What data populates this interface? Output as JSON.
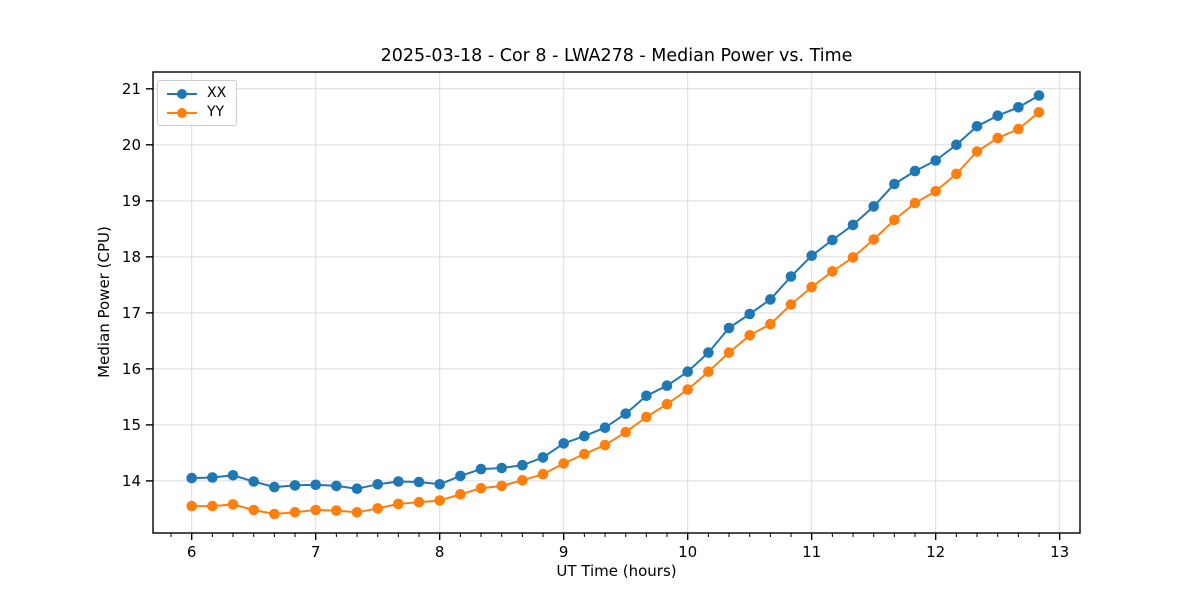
{
  "chart_data": {
    "type": "line",
    "title": "2025-03-18 - Cor 8 - LWA278 - Median Power vs. Time",
    "xlabel": "UT Time (hours)",
    "ylabel": "Median Power (CPU)",
    "xlim": [
      5.688,
      13.164
    ],
    "ylim": [
      13.07,
      21.3
    ],
    "xticks": [
      6,
      7,
      8,
      9,
      10,
      11,
      12,
      13
    ],
    "yticks": [
      14,
      15,
      16,
      17,
      18,
      19,
      20,
      21
    ],
    "x_minor_tick_step": 0.16667,
    "grid": true,
    "grid_color": "#dcdcdc",
    "legend_position": "upper left",
    "x": [
      6.0,
      6.167,
      6.333,
      6.5,
      6.667,
      6.833,
      7.0,
      7.167,
      7.333,
      7.5,
      7.667,
      7.833,
      8.0,
      8.167,
      8.333,
      8.5,
      8.667,
      8.833,
      9.0,
      9.167,
      9.333,
      9.5,
      9.667,
      9.833,
      10.0,
      10.167,
      10.333,
      10.5,
      10.667,
      10.833,
      11.0,
      11.167,
      11.333,
      11.5,
      11.667,
      11.833,
      12.0,
      12.167,
      12.333,
      12.5,
      12.667,
      12.833
    ],
    "series": [
      {
        "name": "XX",
        "color": "#1f77b4",
        "values": [
          14.05,
          14.06,
          14.1,
          13.99,
          13.89,
          13.92,
          13.93,
          13.91,
          13.86,
          13.94,
          13.99,
          13.98,
          13.94,
          14.09,
          14.21,
          14.23,
          14.28,
          14.42,
          14.67,
          14.8,
          14.95,
          15.2,
          15.52,
          15.7,
          15.95,
          16.29,
          16.73,
          16.98,
          17.24,
          17.65,
          18.02,
          18.3,
          18.57,
          18.9,
          19.3,
          19.53,
          19.72,
          20.0,
          20.33,
          20.52,
          20.67,
          20.88
        ]
      },
      {
        "name": "YY",
        "color": "#ff7f0e",
        "values": [
          13.55,
          13.55,
          13.58,
          13.48,
          13.41,
          13.44,
          13.48,
          13.47,
          13.44,
          13.51,
          13.59,
          13.62,
          13.65,
          13.76,
          13.87,
          13.91,
          14.01,
          14.12,
          14.31,
          14.48,
          14.64,
          14.87,
          15.14,
          15.37,
          15.63,
          15.95,
          16.29,
          16.6,
          16.8,
          17.15,
          17.46,
          17.74,
          17.99,
          18.31,
          18.66,
          18.96,
          19.17,
          19.48,
          19.88,
          20.12,
          20.28,
          20.58
        ]
      }
    ]
  }
}
